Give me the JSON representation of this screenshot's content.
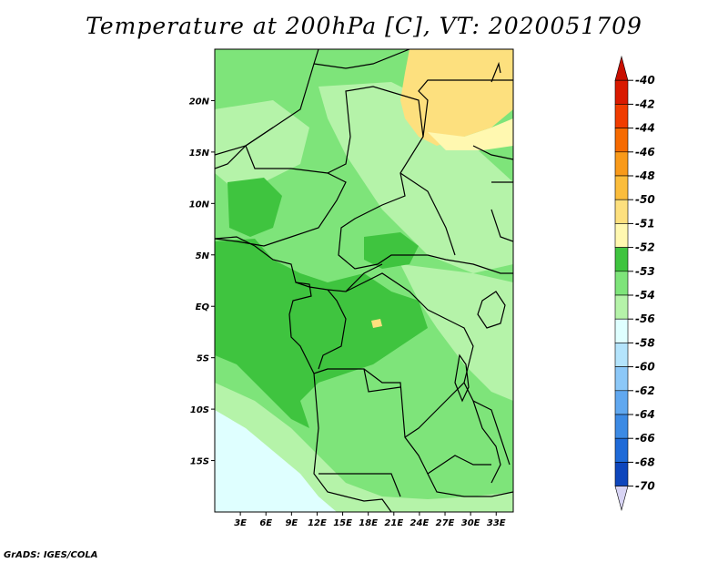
{
  "title": "Temperature at 200hPa [C], VT: 2020051709",
  "credit": "GrADS: IGES/COLA",
  "map": {
    "lat_labels": [
      {
        "label": "20N",
        "lat": 20
      },
      {
        "label": "15N",
        "lat": 15
      },
      {
        "label": "10N",
        "lat": 10
      },
      {
        "label": "5N",
        "lat": 5
      },
      {
        "label": "EQ",
        "lat": 0
      },
      {
        "label": "5S",
        "lat": -5
      },
      {
        "label": "10S",
        "lat": -10
      },
      {
        "label": "15S",
        "lat": -15
      }
    ],
    "lon_labels": [
      {
        "label": "3E",
        "lon": 3
      },
      {
        "label": "6E",
        "lon": 6
      },
      {
        "label": "9E",
        "lon": 9
      },
      {
        "label": "12E",
        "lon": 12
      },
      {
        "label": "15E",
        "lon": 15
      },
      {
        "label": "18E",
        "lon": 18
      },
      {
        "label": "21E",
        "lon": 21
      },
      {
        "label": "24E",
        "lon": 24
      },
      {
        "label": "27E",
        "lon": 27
      },
      {
        "label": "30E",
        "lon": 30
      },
      {
        "label": "33E",
        "lon": 33
      }
    ],
    "lon_range": [
      0,
      35
    ],
    "lat_range": [
      -20,
      25
    ]
  },
  "colorbar": {
    "levels": [
      {
        "label": "-40",
        "color": "#d91a00"
      },
      {
        "label": "-42",
        "color": "#f03c00"
      },
      {
        "label": "-44",
        "color": "#f66a00"
      },
      {
        "label": "-46",
        "color": "#f99a1a"
      },
      {
        "label": "-48",
        "color": "#fbbd3c"
      },
      {
        "label": "-50",
        "color": "#fde07e"
      },
      {
        "label": "-51",
        "color": "#fff8b0"
      },
      {
        "label": "-52",
        "color": "#3fc43f"
      },
      {
        "label": "-53",
        "color": "#7ee47a"
      },
      {
        "label": "-54",
        "color": "#b5f3a9"
      },
      {
        "label": "-56",
        "color": "#dfffff"
      },
      {
        "label": "-58",
        "color": "#b4e4fc"
      },
      {
        "label": "-60",
        "color": "#8cc8f8"
      },
      {
        "label": "-62",
        "color": "#60a8f0"
      },
      {
        "label": "-64",
        "color": "#3c8ae4"
      },
      {
        "label": "-66",
        "color": "#1e6ad8"
      },
      {
        "label": "-68",
        "color": "#0e46bc"
      },
      {
        "label": "-70",
        "color": "#07218e"
      }
    ],
    "top_color": "#c80f00",
    "bottom_color": "#0a0a60",
    "below_color": "#d8d4f4"
  }
}
